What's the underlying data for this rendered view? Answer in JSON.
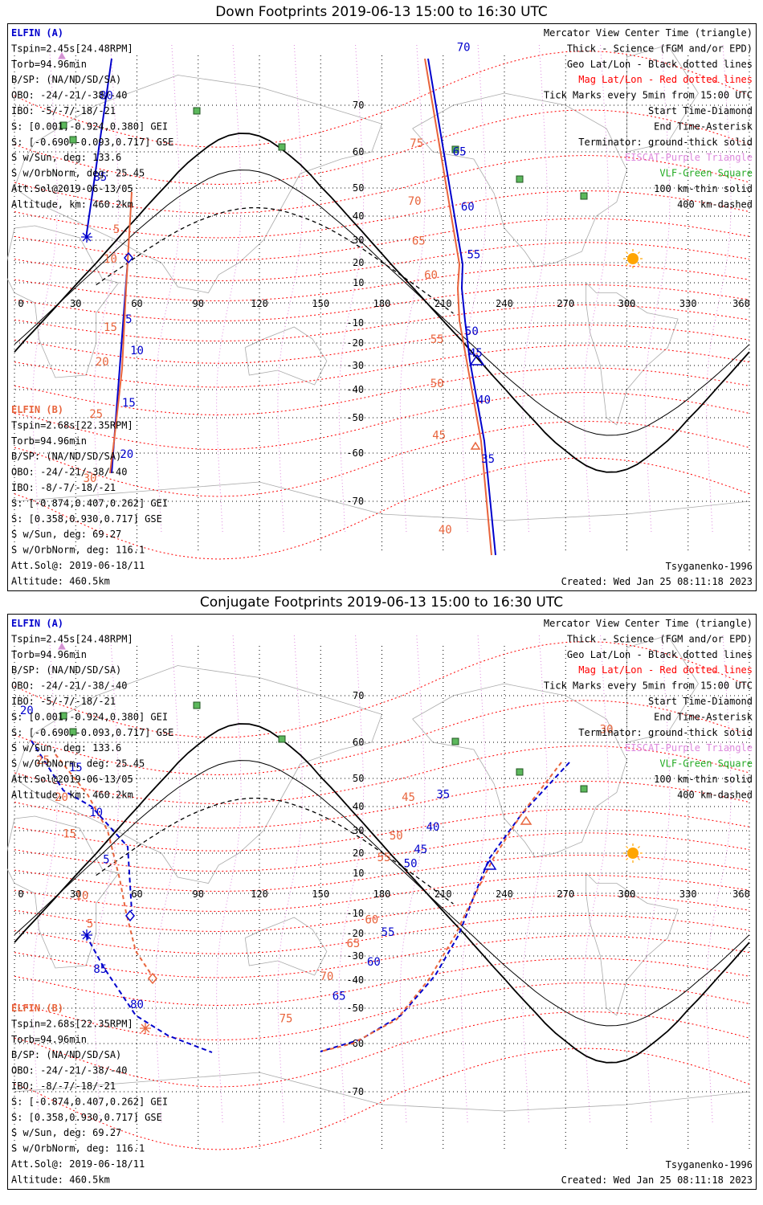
{
  "panels": [
    {
      "title": "Down Footprints 2019-06-13 15:00 to 16:30 UTC",
      "left_a": [
        {
          "t": "ELFIN (A)",
          "c": "blue",
          "bold": true
        },
        {
          "t": "Tspin=2.45s[24.48RPM]"
        },
        {
          "t": "Torb=94.96min"
        },
        {
          "t": "B/SP: (NA/ND/SD/SA)"
        },
        {
          "t": "OBO: -24/-21/-38/-40"
        },
        {
          "t": "IBO: -5/-7/-18/-21"
        },
        {
          "t": "S: [0.001,-0.924,0.380] GEI"
        },
        {
          "t": "S: [-0.690,-0.093,0.717] GSE"
        },
        {
          "t": "S w/Sun, deg: 133.6"
        },
        {
          "t": "S w/OrbNorm, deg: 25.45"
        },
        {
          "t": "Att.Sol@2019-06-13/05"
        },
        {
          "t": "Altitude, km: 460.2km"
        }
      ],
      "left_b": [
        {
          "t": "ELFIN (B)",
          "c": "orange",
          "bold": true
        },
        {
          "t": "Tspin=2.68s[22.35RPM]"
        },
        {
          "t": "Torb=94.96min"
        },
        {
          "t": "B/SP: (NA/ND/SD/SA)"
        },
        {
          "t": "OBO: -24/-21/-38/-40"
        },
        {
          "t": "IBO: -8/-7/-18/-21"
        },
        {
          "t": "S: [-0.874,0.407,0.262] GEI"
        },
        {
          "t": "S: [0.358,0.930,0.717] GSE"
        },
        {
          "t": "S w/Sun, deg: 69.27"
        },
        {
          "t": "S w/OrbNorm, deg: 116.1"
        },
        {
          "t": "Att.Sol@: 2019-06-18/11"
        },
        {
          "t": "Altitude: 460.5km"
        }
      ],
      "track_a_labels": [
        {
          "t": "80",
          "lon": 45,
          "lat": 71
        },
        {
          "t": "85",
          "lon": 42,
          "lat": 52
        },
        {
          "t": "5",
          "lon": 56,
          "lat": -10
        },
        {
          "t": "10",
          "lon": 60,
          "lat": -25
        },
        {
          "t": "15",
          "lon": 56,
          "lat": -46
        },
        {
          "t": "20",
          "lon": 55,
          "lat": -61
        },
        {
          "t": "70",
          "lon": 220,
          "lat": 79
        },
        {
          "t": "65",
          "lon": 218,
          "lat": 59
        },
        {
          "t": "60",
          "lon": 222,
          "lat": 42
        },
        {
          "t": "55",
          "lon": 225,
          "lat": 22
        },
        {
          "t": "50",
          "lon": 224,
          "lat": -16
        },
        {
          "t": "45",
          "lon": 226,
          "lat": -26
        },
        {
          "t": "40",
          "lon": 230,
          "lat": -45
        },
        {
          "t": "35",
          "lon": 232,
          "lat": -62
        }
      ],
      "track_b_labels": [
        {
          "t": "5",
          "lon": 50,
          "lat": 33
        },
        {
          "t": "10",
          "lon": 47,
          "lat": 20
        },
        {
          "t": "15",
          "lon": 47,
          "lat": -14
        },
        {
          "t": "20",
          "lon": 43,
          "lat": -30
        },
        {
          "t": "25",
          "lon": 40,
          "lat": -50
        },
        {
          "t": "30",
          "lon": 37,
          "lat": -66
        },
        {
          "t": "75",
          "lon": 197,
          "lat": 61
        },
        {
          "t": "70",
          "lon": 196,
          "lat": 44
        },
        {
          "t": "65",
          "lon": 198,
          "lat": 28
        },
        {
          "t": "60",
          "lon": 204,
          "lat": 12
        },
        {
          "t": "55",
          "lon": 207,
          "lat": -20
        },
        {
          "t": "50",
          "lon": 207,
          "lat": -39
        },
        {
          "t": "45",
          "lon": 208,
          "lat": -56
        },
        {
          "t": "40",
          "lon": 211,
          "lat": -75
        }
      ]
    },
    {
      "title": "Conjugate Footprints 2019-06-13 15:00 to 16:30 UTC",
      "left_a": [
        {
          "t": "ELFIN (A)",
          "c": "blue",
          "bold": true
        },
        {
          "t": "Tspin=2.45s[24.48RPM]"
        },
        {
          "t": "Torb=94.96min"
        },
        {
          "t": "B/SP: (NA/ND/SD/SA)"
        },
        {
          "t": "OBO: -24/-21/-38/-40"
        },
        {
          "t": "IBO: -5/-7/-18/-21"
        },
        {
          "t": "S: [0.001,-0.924,0.380] GEI"
        },
        {
          "t": "S: [-0.690,-0.093,0.717] GSE"
        },
        {
          "t": "S w/Sun, deg: 133.6"
        },
        {
          "t": "S w/OrbNorm, deg: 25.45"
        },
        {
          "t": "Att.Sol@2019-06-13/05"
        },
        {
          "t": "Altitude, km: 460.2km"
        }
      ],
      "left_b": [
        {
          "t": "ELFIN (B)",
          "c": "orange",
          "bold": true
        },
        {
          "t": "Tspin=2.68s[22.35RPM]"
        },
        {
          "t": "Torb=94.96min"
        },
        {
          "t": "B/SP: (NA/ND/SD/SA)"
        },
        {
          "t": "OBO: -24/-21/-38/-40"
        },
        {
          "t": "IBO: -8/-7/-18/-21"
        },
        {
          "t": "S: [-0.874,0.407,0.262] GEI"
        },
        {
          "t": "S: [0.358,0.930,0.717] GSE"
        },
        {
          "t": "S w/Sun, deg: 69.27"
        },
        {
          "t": "S w/OrbNorm, deg: 116.1"
        },
        {
          "t": "Att.Sol@: 2019-06-18/11"
        },
        {
          "t": "Altitude: 460.5km"
        }
      ],
      "track_a_labels": [
        {
          "t": "20",
          "lon": 6,
          "lat": 66
        },
        {
          "t": "15",
          "lon": 30,
          "lat": 52
        },
        {
          "t": "10",
          "lon": 40,
          "lat": 36
        },
        {
          "t": "5",
          "lon": 45,
          "lat": 15
        },
        {
          "t": "85",
          "lon": 42,
          "lat": -37
        },
        {
          "t": "80",
          "lon": 60,
          "lat": -50
        },
        {
          "t": "35",
          "lon": 210,
          "lat": 43
        },
        {
          "t": "40",
          "lon": 205,
          "lat": 30
        },
        {
          "t": "45",
          "lon": 199,
          "lat": 20
        },
        {
          "t": "50",
          "lon": 194,
          "lat": 13
        },
        {
          "t": "55",
          "lon": 183,
          "lat": -21
        },
        {
          "t": "60",
          "lon": 176,
          "lat": -34
        },
        {
          "t": "65",
          "lon": 159,
          "lat": -47
        }
      ],
      "track_b_labels": [
        {
          "t": "25",
          "lon": 14,
          "lat": 54
        },
        {
          "t": "20",
          "lon": 23,
          "lat": 42
        },
        {
          "t": "15",
          "lon": 27,
          "lat": 27
        },
        {
          "t": "10",
          "lon": 33,
          "lat": -3
        },
        {
          "t": "5",
          "lon": 37,
          "lat": -17
        },
        {
          "t": "30",
          "lon": 290,
          "lat": 62
        },
        {
          "t": "45",
          "lon": 193,
          "lat": 42
        },
        {
          "t": "50",
          "lon": 187,
          "lat": 26
        },
        {
          "t": "55",
          "lon": 181,
          "lat": 16
        },
        {
          "t": "60",
          "lon": 175,
          "lat": -15
        },
        {
          "t": "65",
          "lon": 166,
          "lat": -26
        },
        {
          "t": "70",
          "lon": 153,
          "lat": -40
        },
        {
          "t": "75",
          "lon": 133,
          "lat": -54
        }
      ]
    }
  ],
  "legend": [
    {
      "t": "Mercator View Center Time (triangle)",
      "c": "black"
    },
    {
      "t": "Thick - Science (FGM and/or EPD)",
      "c": "black"
    },
    {
      "t": "Geo Lat/Lon - Black dotted lines",
      "c": "black"
    },
    {
      "t": "Mag Lat/Lon - Red dotted lines",
      "c": "red"
    },
    {
      "t": "Tick Marks every 5min from 15:00 UTC",
      "c": "black"
    },
    {
      "t": "Start Time-Diamond",
      "c": "black"
    },
    {
      "t": "End Time-Asterisk",
      "c": "black"
    },
    {
      "t": "Terminator: ground-thick solid",
      "c": "black"
    },
    {
      "t": "EISCAT-Purple Triangle",
      "c": "violet"
    },
    {
      "t": "VLF-Green Square",
      "c": "green"
    },
    {
      "t": "100 km-thin solid",
      "c": "black"
    },
    {
      "t": "400 km-dashed",
      "c": "black"
    }
  ],
  "model": "Tsyganenko-1996",
  "created": "Created: Wed Jan 25 08:11:18 2023",
  "lon_ticks": [
    "0",
    "30",
    "60",
    "90",
    "120",
    "150",
    "180",
    "210",
    "240",
    "270",
    "300",
    "330",
    "360"
  ],
  "lat_ticks": [
    "70",
    "60",
    "50",
    "40",
    "30",
    "20",
    "10",
    "-10",
    "-20",
    "-30",
    "-40",
    "-50",
    "-60",
    "-70"
  ],
  "colors": {
    "blue": "#0000cc",
    "orange": "#e8643c",
    "red": "#ff0000",
    "green": "#22aa22",
    "violet": "#dd88dd",
    "sun": "#ffa500"
  }
}
